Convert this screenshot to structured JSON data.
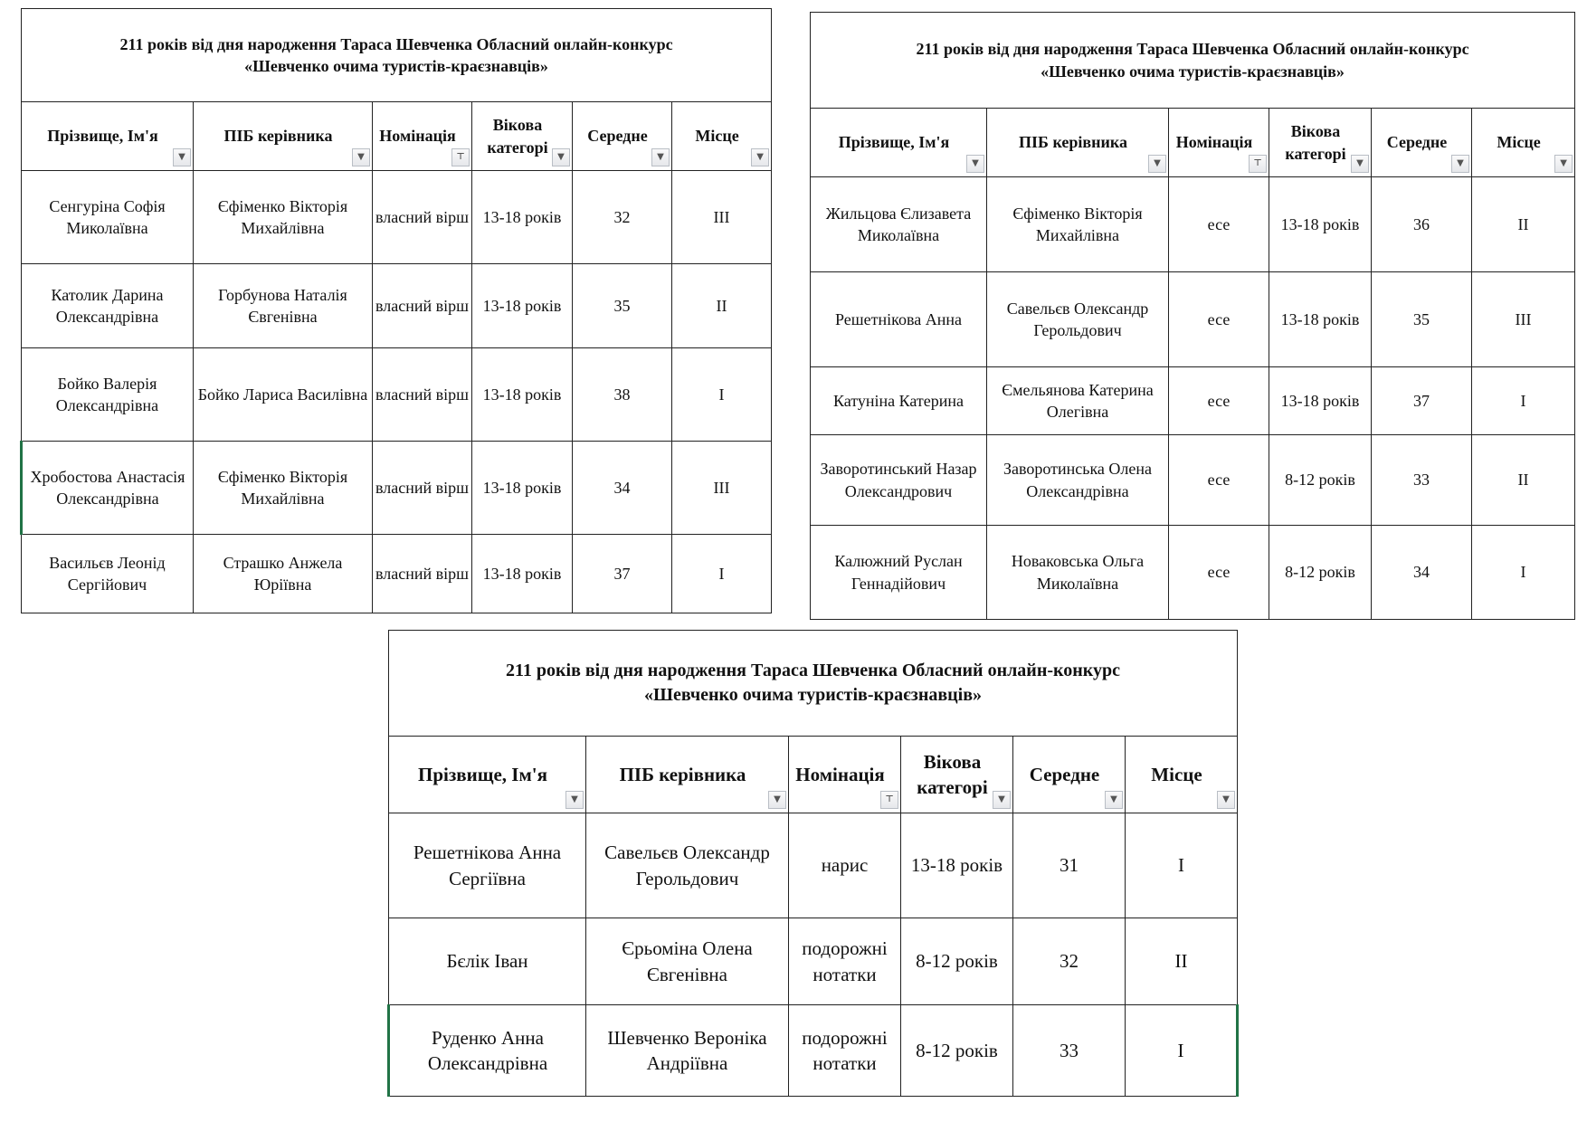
{
  "headers": [
    "Прізвище, Ім'я",
    "ПІБ керівника",
    "Номінація",
    "Вікова категорі",
    "Середне",
    "Місце"
  ],
  "filter_icons": [
    "dropdown-arrow-icon",
    "dropdown-arrow-icon",
    "filter-active-icon",
    "dropdown-arrow-icon",
    "dropdown-arrow-icon",
    "dropdown-arrow-icon"
  ],
  "accent_color": "#217346",
  "tables": [
    {
      "title_line1": "211 років від дня народження Тараса Шевченка Обласний онлайн-конкурс",
      "title_line2": "«Шевченко очима туристів-краєзнавців»",
      "rows": [
        [
          "Сенгуріна Софія Миколаївна",
          "Єфіменко Вікторія Михайлівна",
          "власний вірш",
          "13-18 років",
          "32",
          "III"
        ],
        [
          "Католик Дарина Олександрівна",
          "Горбунова Наталія Євгенівна",
          "власний вірш",
          "13-18 років",
          "35",
          "II"
        ],
        [
          "Бойко Валерія Олександрівна",
          "Бойко Лариса Василівна",
          "власний вірш",
          "13-18 років",
          "38",
          "I"
        ],
        [
          "Хробостова Анастасія Олександрівна",
          "Єфіменко Вікторія Михайлівна",
          "власний вірш",
          "13-18 років",
          "34",
          "III"
        ],
        [
          "Васильєв Леонід Сергійович",
          "Страшко Анжела Юріївна",
          "власний вірш",
          "13-18 років",
          "37",
          "I"
        ]
      ]
    },
    {
      "title_line1": "211 років від дня народження Тараса Шевченка Обласний онлайн-конкурс",
      "title_line2": "«Шевченко очима туристів-краєзнавців»",
      "rows": [
        [
          "Жильцова Єлизавета Миколаївна",
          "Єфіменко Вікторія Михайлівна",
          "есе",
          "13-18 років",
          "36",
          "II"
        ],
        [
          "Решетнікова Анна",
          "Савельєв Олександр Герольдович",
          "есе",
          "13-18 років",
          "35",
          "III"
        ],
        [
          "Катуніна Катерина",
          "Ємельянова Катерина Олегівна",
          "есе",
          "13-18 років",
          "37",
          "I"
        ],
        [
          "Заворотинський Назар Олександрович",
          "Заворотинська Олена Олександрівна",
          "есе",
          "8-12 років",
          "33",
          "II"
        ],
        [
          "Калюжний Руслан Геннадійович",
          "Новаковська Ольга Миколаївна",
          "есе",
          "8-12 років",
          "34",
          "I"
        ]
      ]
    },
    {
      "title_line1": "211 років від дня народження Тараса Шевченка Обласний онлайн-конкурс",
      "title_line2": "«Шевченко очима туристів-краєзнавців»",
      "rows": [
        [
          "Решетнікова Анна Сергіївна",
          "Савельєв Олександр Герольдович",
          "нарис",
          "13-18 років",
          "31",
          "I"
        ],
        [
          "Бєлік Іван",
          "Єрьоміна Олена Євгенівна",
          "подорожні нотатки",
          "8-12 років",
          "32",
          "II"
        ],
        [
          "Руденко Анна Олександрівна",
          "Шевченко Вероніка Андріївна",
          "подорожні нотатки",
          "8-12 років",
          "33",
          "I"
        ]
      ]
    }
  ]
}
